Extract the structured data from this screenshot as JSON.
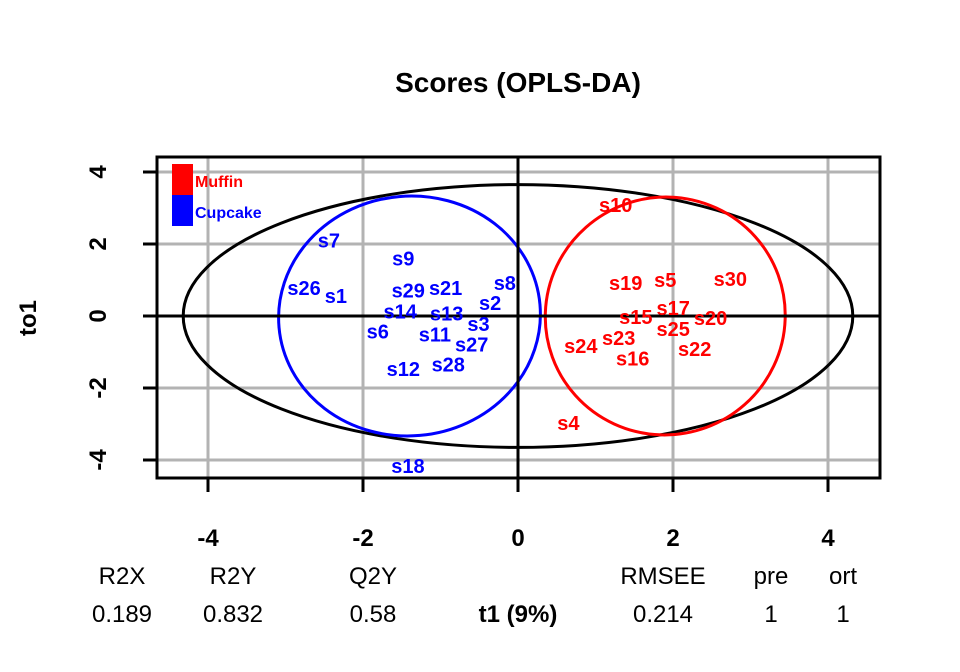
{
  "chart_data": {
    "type": "scatter",
    "title": "Scores (OPLS-DA)",
    "xlabel": "t1 (9%)",
    "ylabel": "to1",
    "xlim": [
      -4.65,
      4.65
    ],
    "ylim": [
      -4.5,
      4.5
    ],
    "xticks": [
      -4,
      -2,
      0,
      2,
      4
    ],
    "yticks": [
      -4,
      -2,
      0,
      2,
      4
    ],
    "grid": true,
    "legend": {
      "placement": "top-left",
      "entries": [
        {
          "name": "Muffin",
          "color": "#ff0000"
        },
        {
          "name": "Cupcake",
          "color": "#0000ff"
        }
      ]
    },
    "ellipses": [
      {
        "name": "hotelling",
        "color": "#000000",
        "cx": 0,
        "cy": 0,
        "rx": 4.32,
        "ry": 3.65,
        "angle": 0
      },
      {
        "name": "Cupcake",
        "color": "#0000ff",
        "cx": -1.4,
        "cy": 0,
        "rx": 1.69,
        "ry": 3.33,
        "angle": -5
      },
      {
        "name": "Muffin",
        "color": "#ff0000",
        "cx": 1.9,
        "cy": 0,
        "rx": 1.55,
        "ry": 3.3,
        "angle": -20
      }
    ],
    "points": [
      {
        "label": "s7",
        "x": -2.44,
        "y": 2.1,
        "group": "Cupcake"
      },
      {
        "label": "s9",
        "x": -1.48,
        "y": 1.6,
        "group": "Cupcake"
      },
      {
        "label": "s26",
        "x": -2.75,
        "y": 0.78,
        "group": "Cupcake"
      },
      {
        "label": "s1",
        "x": -2.36,
        "y": 0.56,
        "group": "Cupcake"
      },
      {
        "label": "s29",
        "x": -1.35,
        "y": 0.58,
        "group": "Cupcake"
      },
      {
        "label": "s21",
        "x": -1.0,
        "y": 0.78,
        "group": "Cupcake"
      },
      {
        "label": "s8",
        "x": -0.17,
        "y": 0.83,
        "group": "Cupcake"
      },
      {
        "label": "s14",
        "x": -1.52,
        "y": 0.08,
        "group": "Cupcake"
      },
      {
        "label": "s6",
        "x": -1.81,
        "y": -0.25,
        "group": "Cupcake"
      },
      {
        "label": "s13",
        "x": -0.88,
        "y": 0.03,
        "group": "Cupcake"
      },
      {
        "label": "s2",
        "x": -0.36,
        "y": 0.03,
        "group": "Cupcake"
      },
      {
        "label": "s3",
        "x": -0.55,
        "y": -0.25,
        "group": "Cupcake"
      },
      {
        "label": "s11",
        "x": -1.05,
        "y": -0.47,
        "group": "Cupcake"
      },
      {
        "label": "s27",
        "x": -0.62,
        "y": -0.6,
        "group": "Cupcake"
      },
      {
        "label": "s28",
        "x": -0.9,
        "y": -1.08,
        "group": "Cupcake"
      },
      {
        "label": "s12",
        "x": -1.48,
        "y": -1.47,
        "group": "Cupcake"
      },
      {
        "label": "s18",
        "x": -1.42,
        "y": -4.17,
        "group": "Cupcake"
      },
      {
        "label": "s10",
        "x": 1.26,
        "y": 3.08,
        "group": "Muffin"
      },
      {
        "label": "s19",
        "x": 1.39,
        "y": 0.92,
        "group": "Muffin"
      },
      {
        "label": "s5",
        "x": 1.9,
        "y": 1.0,
        "group": "Muffin"
      },
      {
        "label": "s30",
        "x": 2.74,
        "y": 1.03,
        "group": "Muffin"
      },
      {
        "label": "s17",
        "x": 2.03,
        "y": 0.03,
        "group": "Muffin"
      },
      {
        "label": "s20",
        "x": 2.41,
        "y": -0.05,
        "group": "Muffin"
      },
      {
        "label": "s15",
        "x": 1.57,
        "y": -0.3,
        "group": "Muffin"
      },
      {
        "label": "s25",
        "x": 2.0,
        "y": -0.33,
        "group": "Muffin"
      },
      {
        "label": "s23",
        "x": 1.25,
        "y": -0.58,
        "group": "Muffin"
      },
      {
        "label": "s24",
        "x": 0.86,
        "y": -0.83,
        "group": "Muffin"
      },
      {
        "label": "s16",
        "x": 1.48,
        "y": -0.94,
        "group": "Muffin"
      },
      {
        "label": "s22",
        "x": 2.28,
        "y": -0.75,
        "group": "Muffin"
      },
      {
        "label": "s4",
        "x": 0.65,
        "y": -2.97,
        "group": "Muffin"
      }
    ],
    "stats": {
      "headers": [
        "R2X",
        "R2Y",
        "Q2Y",
        "RMSEE",
        "pre",
        "ort"
      ],
      "values": [
        "0.189",
        "0.832",
        "0.58",
        "0.214",
        "1",
        "1"
      ]
    }
  }
}
